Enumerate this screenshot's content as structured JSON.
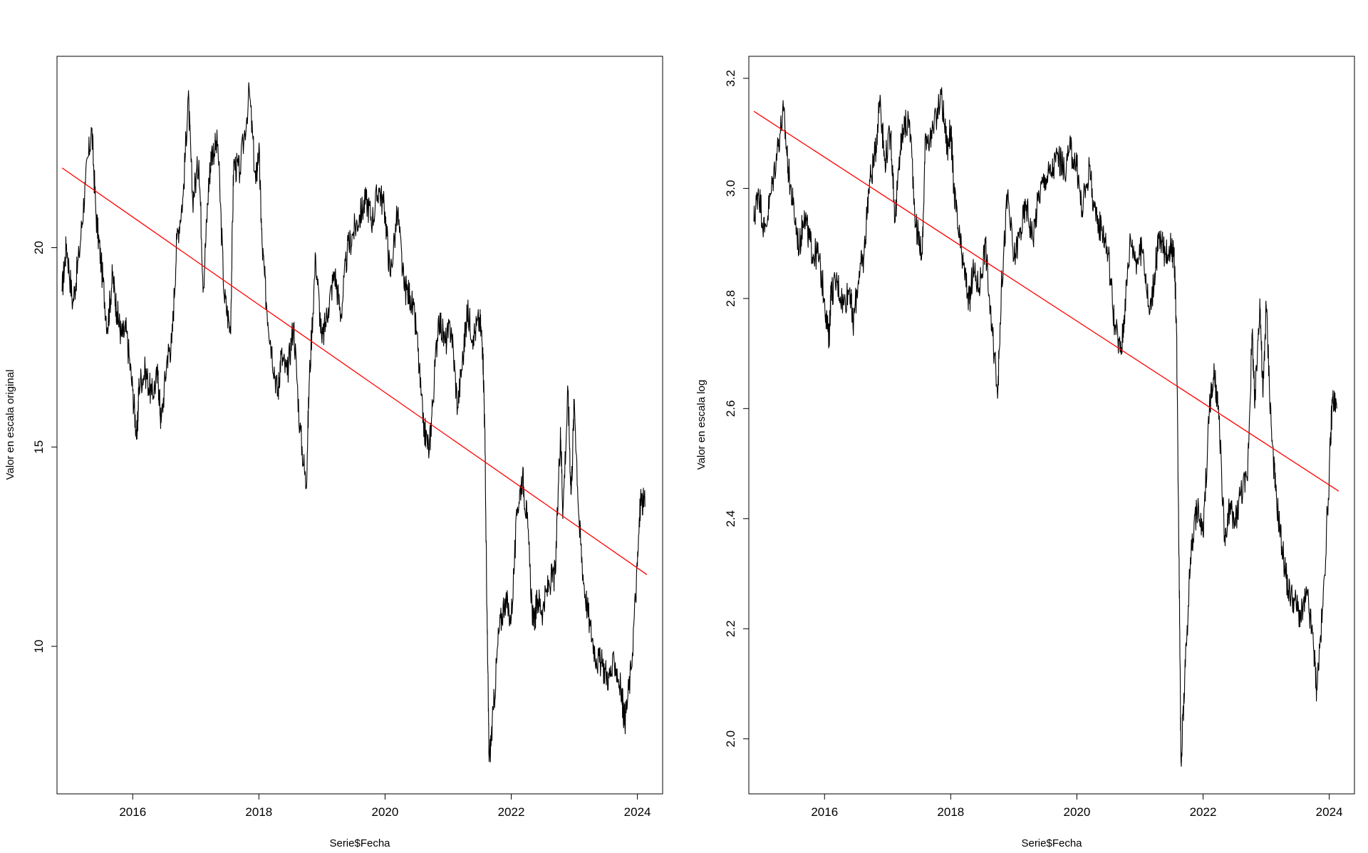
{
  "chart_data": [
    {
      "type": "line",
      "title": "",
      "xlabel": "Serie$Fecha",
      "ylabel": "Valor en escala original",
      "xlim": [
        2014.8,
        2024.4
      ],
      "ylim": [
        6.3,
        24.8
      ],
      "x_ticks": [
        2016,
        2018,
        2020,
        2022,
        2024
      ],
      "x_tick_labels": [
        "2016",
        "2018",
        "2020",
        "2022",
        "2024"
      ],
      "y_ticks": [
        10,
        15,
        20
      ],
      "y_tick_labels": [
        "10",
        "15",
        "20"
      ],
      "grid": false,
      "series": [
        {
          "color": "#000000",
          "x": [
            2014.88,
            2014.95,
            2015.05,
            2015.15,
            2015.25,
            2015.35,
            2015.42,
            2015.5,
            2015.6,
            2015.68,
            2015.75,
            2015.82,
            2015.9,
            2016.0,
            2016.07,
            2016.1,
            2016.2,
            2016.3,
            2016.4,
            2016.45,
            2016.55,
            2016.62,
            2016.7,
            2016.8,
            2016.88,
            2016.95,
            2017.05,
            2017.12,
            2017.2,
            2017.25,
            2017.35,
            2017.45,
            2017.55,
            2017.6,
            2017.7,
            2017.85,
            2017.95,
            2018.0,
            2018.05,
            2018.12,
            2018.2,
            2018.3,
            2018.35,
            2018.45,
            2018.55,
            2018.65,
            2018.75,
            2018.8,
            2018.9,
            2019.0,
            2019.1,
            2019.2,
            2019.3,
            2019.4,
            2019.5,
            2019.6,
            2019.7,
            2019.8,
            2019.9,
            2020.0,
            2020.08,
            2020.2,
            2020.3,
            2020.4,
            2020.5,
            2020.6,
            2020.7,
            2020.75,
            2020.85,
            2020.95,
            2021.05,
            2021.15,
            2021.25,
            2021.3,
            2021.4,
            2021.5,
            2021.55,
            2021.58,
            2021.62,
            2021.65,
            2021.72,
            2021.8,
            2021.9,
            2022.0,
            2022.1,
            2022.18,
            2022.25,
            2022.35,
            2022.42,
            2022.5,
            2022.6,
            2022.7,
            2022.78,
            2022.82,
            2022.9,
            2022.95,
            2023.0,
            2023.08,
            2023.15,
            2023.25,
            2023.35,
            2023.45,
            2023.55,
            2023.65,
            2023.75,
            2023.8,
            2023.9,
            2024.0,
            2024.05,
            2024.12
          ],
          "y": [
            18.9,
            20.1,
            18.6,
            19.8,
            21.6,
            23.0,
            20.8,
            19.6,
            18.0,
            19.3,
            18.4,
            17.8,
            17.9,
            16.4,
            15.2,
            16.6,
            16.9,
            16.3,
            16.8,
            15.6,
            17.3,
            17.6,
            20.2,
            21.3,
            23.8,
            21.2,
            22.2,
            19.0,
            21.5,
            22.4,
            22.6,
            18.8,
            17.9,
            22.1,
            21.9,
            23.9,
            21.6,
            22.5,
            20.1,
            18.6,
            17.5,
            16.3,
            17.3,
            16.8,
            18.1,
            15.5,
            14.0,
            16.7,
            19.8,
            17.6,
            18.5,
            19.4,
            18.3,
            19.9,
            20.4,
            20.8,
            21.2,
            20.7,
            21.5,
            20.9,
            19.3,
            20.9,
            19.0,
            18.8,
            17.9,
            15.6,
            14.9,
            16.0,
            18.3,
            17.6,
            18.0,
            16.0,
            17.5,
            18.4,
            17.8,
            18.2,
            17.5,
            15.5,
            10.3,
            7.1,
            8.4,
            10.3,
            11.2,
            10.7,
            13.5,
            14.3,
            13.2,
            10.5,
            11.2,
            10.9,
            11.6,
            11.8,
            15.5,
            13.4,
            16.4,
            13.8,
            16.2,
            13.0,
            11.6,
            10.5,
            9.7,
            9.5,
            9.2,
            9.6,
            8.8,
            8.1,
            9.4,
            12.0,
            13.7,
            13.5
          ]
        },
        {
          "name": "",
          "color": "#ff0000",
          "x": [
            2014.88,
            2024.15
          ],
          "y": [
            22.0,
            11.8
          ]
        }
      ]
    },
    {
      "type": "line",
      "title": "",
      "xlabel": "Serie$Fecha",
      "ylabel": "Valor en escala log",
      "xlim": [
        2014.8,
        2024.4
      ],
      "ylim": [
        1.9,
        3.24
      ],
      "x_ticks": [
        2016,
        2018,
        2020,
        2022,
        2024
      ],
      "x_tick_labels": [
        "2016",
        "2018",
        "2020",
        "2022",
        "2024"
      ],
      "y_ticks": [
        2.0,
        2.2,
        2.4,
        2.6,
        2.8,
        3.0,
        3.2
      ],
      "y_tick_labels": [
        "2.0",
        "2.2",
        "2.4",
        "2.6",
        "2.8",
        "3.0",
        "3.2"
      ],
      "grid": false,
      "series": [
        {
          "color": "#000000",
          "x": [
            2014.88,
            2014.95,
            2015.05,
            2015.15,
            2015.25,
            2015.35,
            2015.42,
            2015.5,
            2015.6,
            2015.68,
            2015.75,
            2015.82,
            2015.9,
            2016.0,
            2016.07,
            2016.1,
            2016.2,
            2016.3,
            2016.4,
            2016.45,
            2016.55,
            2016.62,
            2016.7,
            2016.8,
            2016.88,
            2016.95,
            2017.05,
            2017.12,
            2017.2,
            2017.25,
            2017.35,
            2017.45,
            2017.55,
            2017.6,
            2017.7,
            2017.85,
            2017.95,
            2018.0,
            2018.05,
            2018.12,
            2018.2,
            2018.3,
            2018.35,
            2018.45,
            2018.55,
            2018.65,
            2018.75,
            2018.8,
            2018.9,
            2019.0,
            2019.1,
            2019.2,
            2019.3,
            2019.4,
            2019.5,
            2019.6,
            2019.7,
            2019.8,
            2019.9,
            2020.0,
            2020.08,
            2020.2,
            2020.3,
            2020.4,
            2020.5,
            2020.6,
            2020.7,
            2020.75,
            2020.85,
            2020.95,
            2021.05,
            2021.15,
            2021.25,
            2021.3,
            2021.4,
            2021.5,
            2021.55,
            2021.58,
            2021.62,
            2021.65,
            2021.72,
            2021.8,
            2021.9,
            2022.0,
            2022.1,
            2022.18,
            2022.25,
            2022.35,
            2022.42,
            2022.5,
            2022.6,
            2022.7,
            2022.78,
            2022.82,
            2022.9,
            2022.95,
            2023.0,
            2023.08,
            2023.15,
            2023.25,
            2023.35,
            2023.45,
            2023.55,
            2023.65,
            2023.75,
            2023.8,
            2023.9,
            2024.0,
            2024.05,
            2024.12
          ],
          "y": [
            2.94,
            3.0,
            2.92,
            2.99,
            3.07,
            3.14,
            3.04,
            2.97,
            2.89,
            2.96,
            2.91,
            2.88,
            2.88,
            2.8,
            2.72,
            2.81,
            2.83,
            2.79,
            2.82,
            2.75,
            2.85,
            2.87,
            3.0,
            3.06,
            3.17,
            3.05,
            3.1,
            2.94,
            3.07,
            3.11,
            3.12,
            2.93,
            2.88,
            3.1,
            3.09,
            3.17,
            3.07,
            3.11,
            3.0,
            2.92,
            2.86,
            2.79,
            2.85,
            2.82,
            2.9,
            2.74,
            2.64,
            2.81,
            2.99,
            2.87,
            2.92,
            2.97,
            2.91,
            2.99,
            3.02,
            3.03,
            3.06,
            3.03,
            3.07,
            3.04,
            2.96,
            3.04,
            2.94,
            2.93,
            2.88,
            2.75,
            2.7,
            2.77,
            2.91,
            2.87,
            2.89,
            2.77,
            2.86,
            2.91,
            2.88,
            2.9,
            2.86,
            2.74,
            2.33,
            1.96,
            2.13,
            2.33,
            2.42,
            2.37,
            2.6,
            2.66,
            2.58,
            2.35,
            2.42,
            2.39,
            2.45,
            2.47,
            2.74,
            2.6,
            2.8,
            2.62,
            2.79,
            2.57,
            2.45,
            2.35,
            2.27,
            2.25,
            2.22,
            2.26,
            2.17,
            2.09,
            2.24,
            2.48,
            2.62,
            2.6
          ]
        },
        {
          "name": "",
          "color": "#ff0000",
          "x": [
            2014.88,
            2024.15
          ],
          "y": [
            3.14,
            2.45
          ]
        }
      ]
    }
  ]
}
